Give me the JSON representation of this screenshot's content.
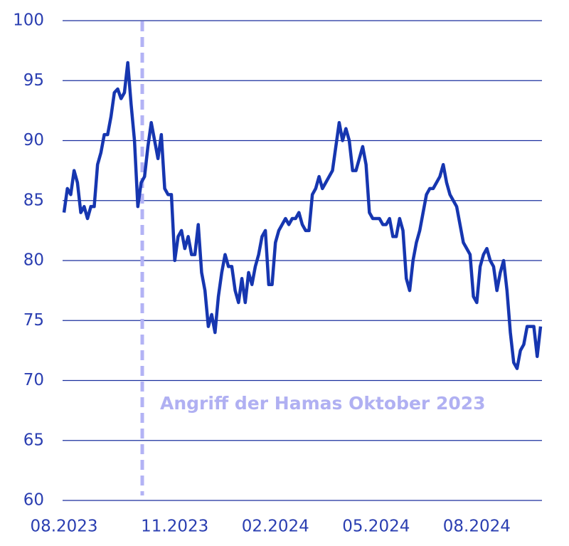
{
  "chart_data": {
    "type": "line",
    "color": "#1636b0",
    "grid": true,
    "annotation": "Angriff der Hamas Oktober 2023",
    "ylim": [
      60,
      100
    ],
    "yticks": [
      60,
      65,
      70,
      75,
      80,
      85,
      90,
      95,
      100
    ],
    "categories": [
      "08.2023",
      null,
      null,
      null,
      null,
      null,
      null,
      null,
      null,
      null,
      null,
      null,
      null,
      null,
      null,
      null,
      null,
      null,
      null,
      null,
      null,
      null,
      null,
      null,
      null,
      null,
      null,
      null,
      null,
      null,
      null,
      null,
      null,
      "11.2023",
      null,
      null,
      null,
      null,
      null,
      null,
      null,
      null,
      null,
      null,
      null,
      null,
      null,
      null,
      null,
      null,
      null,
      null,
      null,
      null,
      null,
      null,
      null,
      null,
      null,
      null,
      null,
      null,
      null,
      "02.2024",
      null,
      null,
      null,
      null,
      null,
      null,
      null,
      null,
      null,
      null,
      null,
      null,
      null,
      null,
      null,
      null,
      null,
      null,
      null,
      null,
      null,
      null,
      null,
      null,
      null,
      null,
      null,
      null,
      null,
      "05.2024",
      null,
      null,
      null,
      null,
      null,
      null,
      null,
      null,
      null,
      null,
      null,
      null,
      null,
      null,
      null,
      null,
      null,
      null,
      null,
      null,
      null,
      null,
      null,
      null,
      null,
      null,
      null,
      null,
      null,
      "08.2024",
      null,
      null,
      null,
      null,
      null,
      null,
      null,
      null,
      null,
      null,
      null,
      null,
      null,
      null,
      null,
      null,
      null,
      null,
      null
    ],
    "values": [
      84,
      86,
      85.5,
      87.5,
      86.5,
      84,
      84.5,
      83.5,
      84.5,
      84.5,
      88,
      89,
      90.5,
      90.5,
      92,
      94,
      94.3,
      93.5,
      94,
      96.5,
      93,
      90,
      84.5,
      86.5,
      87,
      89.5,
      91.5,
      90,
      88.5,
      90.5,
      86,
      85.5,
      85.5,
      80,
      82,
      82.5,
      81,
      82,
      80.5,
      80.5,
      83,
      79,
      77.5,
      74.5,
      75.5,
      74,
      77,
      79,
      80.5,
      79.5,
      79.5,
      77.5,
      76.5,
      78.5,
      76.5,
      79,
      78,
      79.5,
      80.5,
      82,
      82.5,
      78,
      78,
      81.5,
      82.5,
      83,
      83.5,
      83,
      83.5,
      83.5,
      84,
      83,
      82.5,
      82.5,
      85.5,
      86,
      87,
      86,
      86.5,
      87,
      87.5,
      89.5,
      91.5,
      90,
      91,
      90,
      87.5,
      87.5,
      88.5,
      89.5,
      88,
      84,
      83.5,
      83.5,
      83.5,
      83,
      83,
      83.5,
      82,
      82,
      83.5,
      82.5,
      78.5,
      77.5,
      80,
      81.5,
      82.5,
      84,
      85.5,
      86,
      86,
      86.5,
      87,
      88,
      86.5,
      85.5,
      85,
      84.5,
      83,
      81.5,
      81,
      80.5,
      77,
      76.5,
      79.5,
      80.5,
      81,
      80,
      79.5,
      77.5,
      79,
      80,
      77.5,
      74,
      71.5,
      71,
      72.5,
      73,
      74.5,
      74.5,
      74.5,
      72,
      74.5
    ]
  }
}
